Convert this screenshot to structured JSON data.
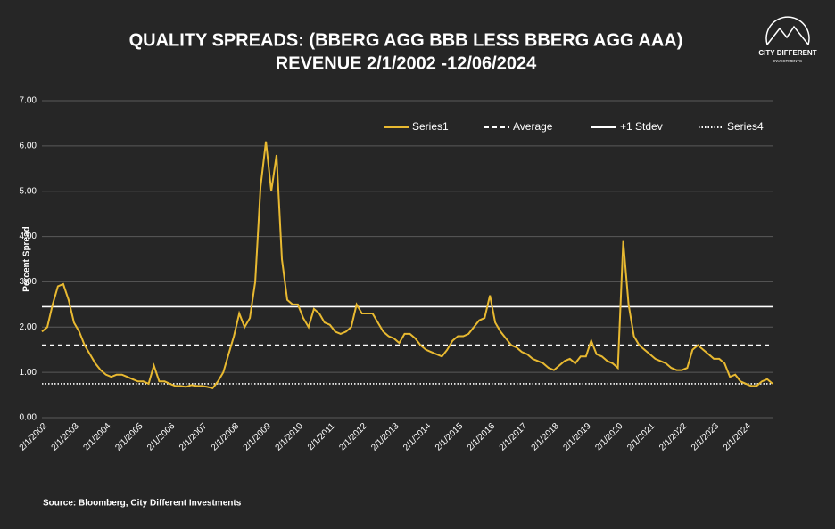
{
  "chart_data": {
    "type": "line",
    "title": "QUALITY SPREADS: (BBERG AGG BBB LESS BBERG AGG AAA)",
    "subtitle": "REVENUE 2/1/2002 -12/06/2024",
    "y_label": "Percent Spread",
    "source": "Source: Bloomberg, City Different Investments",
    "logo": {
      "name": "CITY DIFFERENT",
      "tagline": "INVESTMENTS"
    },
    "grid": true,
    "legend": "top-right",
    "ylim": [
      0,
      7
    ],
    "yticks": [
      {
        "value": 0,
        "label": "0.00"
      },
      {
        "value": 1,
        "label": "1.00"
      },
      {
        "value": 2,
        "label": "2.00"
      },
      {
        "value": 3,
        "label": "3.00"
      },
      {
        "value": 4,
        "label": "4.00"
      },
      {
        "value": 5,
        "label": "5.00"
      },
      {
        "value": 6,
        "label": "6.00"
      },
      {
        "value": 7,
        "label": "7.00"
      }
    ],
    "categories": [
      "2/1/2002",
      null,
      null,
      null,
      null,
      null,
      "2/1/2003",
      null,
      null,
      null,
      null,
      null,
      "2/1/2004",
      null,
      null,
      null,
      null,
      null,
      "2/1/2005",
      null,
      null,
      null,
      null,
      null,
      "2/1/2006",
      null,
      null,
      null,
      null,
      null,
      "2/1/2007",
      null,
      null,
      null,
      null,
      null,
      "2/1/2008",
      null,
      null,
      null,
      null,
      null,
      "2/1/2009",
      null,
      null,
      null,
      null,
      null,
      "2/1/2010",
      null,
      null,
      null,
      null,
      null,
      "2/1/2011",
      null,
      null,
      null,
      null,
      null,
      "2/1/2012",
      null,
      null,
      null,
      null,
      null,
      "2/1/2013",
      null,
      null,
      null,
      null,
      null,
      "2/1/2014",
      null,
      null,
      null,
      null,
      null,
      "2/1/2015",
      null,
      null,
      null,
      null,
      null,
      "2/1/2016",
      null,
      null,
      null,
      null,
      null,
      "2/1/2017",
      null,
      null,
      null,
      null,
      null,
      "2/1/2018",
      null,
      null,
      null,
      null,
      null,
      "2/1/2019",
      null,
      null,
      null,
      null,
      null,
      "2/1/2020",
      null,
      null,
      null,
      null,
      null,
      "2/1/2021",
      null,
      null,
      null,
      null,
      null,
      "2/1/2022",
      null,
      null,
      null,
      null,
      null,
      "2/1/2023",
      null,
      null,
      null,
      null,
      null,
      "2/1/2024",
      null,
      null,
      null,
      null,
      null
    ],
    "series": [
      {
        "name": "Series1",
        "color": "#e8b931",
        "style": "solid",
        "values": [
          1.9,
          2.0,
          2.5,
          2.9,
          2.95,
          2.6,
          2.1,
          1.9,
          1.6,
          1.4,
          1.2,
          1.05,
          0.95,
          0.9,
          0.95,
          0.95,
          0.9,
          0.85,
          0.8,
          0.8,
          0.75,
          1.15,
          0.8,
          0.8,
          0.75,
          0.7,
          0.7,
          0.68,
          0.72,
          0.7,
          0.7,
          0.68,
          0.65,
          0.8,
          1.0,
          1.4,
          1.8,
          2.3,
          2.0,
          2.2,
          3.0,
          5.1,
          6.1,
          5.0,
          5.8,
          3.5,
          2.6,
          2.5,
          2.5,
          2.2,
          2.0,
          2.4,
          2.3,
          2.1,
          2.05,
          1.9,
          1.85,
          1.9,
          2.0,
          2.5,
          2.3,
          2.3,
          2.3,
          2.1,
          1.9,
          1.8,
          1.75,
          1.65,
          1.85,
          1.85,
          1.75,
          1.6,
          1.5,
          1.45,
          1.4,
          1.35,
          1.5,
          1.7,
          1.8,
          1.8,
          1.85,
          2.0,
          2.15,
          2.2,
          2.7,
          2.1,
          1.9,
          1.75,
          1.6,
          1.55,
          1.45,
          1.4,
          1.3,
          1.25,
          1.2,
          1.1,
          1.05,
          1.15,
          1.25,
          1.3,
          1.2,
          1.35,
          1.35,
          1.7,
          1.4,
          1.35,
          1.25,
          1.2,
          1.1,
          3.9,
          2.5,
          1.8,
          1.6,
          1.5,
          1.4,
          1.3,
          1.25,
          1.2,
          1.1,
          1.05,
          1.05,
          1.1,
          1.5,
          1.6,
          1.5,
          1.4,
          1.3,
          1.3,
          1.2,
          0.9,
          0.95,
          0.8,
          0.75,
          0.7,
          0.7,
          0.8,
          0.85,
          0.75
        ]
      },
      {
        "name": "Average",
        "color": "#ffffff",
        "style": "dashed",
        "values": [
          1.6,
          1.6,
          1.6,
          1.6,
          1.6,
          1.6,
          1.6,
          1.6,
          1.6,
          1.6,
          1.6,
          1.6,
          1.6,
          1.6,
          1.6,
          1.6,
          1.6,
          1.6,
          1.6,
          1.6,
          1.6,
          1.6,
          1.6,
          1.6,
          1.6,
          1.6,
          1.6,
          1.6,
          1.6,
          1.6,
          1.6,
          1.6,
          1.6,
          1.6,
          1.6,
          1.6,
          1.6,
          1.6,
          1.6,
          1.6,
          1.6,
          1.6,
          1.6,
          1.6,
          1.6,
          1.6,
          1.6,
          1.6,
          1.6,
          1.6,
          1.6,
          1.6,
          1.6,
          1.6,
          1.6,
          1.6,
          1.6,
          1.6,
          1.6,
          1.6,
          1.6,
          1.6,
          1.6,
          1.6,
          1.6,
          1.6,
          1.6,
          1.6,
          1.6,
          1.6,
          1.6,
          1.6,
          1.6,
          1.6,
          1.6,
          1.6,
          1.6,
          1.6,
          1.6,
          1.6,
          1.6,
          1.6,
          1.6,
          1.6,
          1.6,
          1.6,
          1.6,
          1.6,
          1.6,
          1.6,
          1.6,
          1.6,
          1.6,
          1.6,
          1.6,
          1.6,
          1.6,
          1.6,
          1.6,
          1.6,
          1.6,
          1.6,
          1.6,
          1.6,
          1.6,
          1.6,
          1.6,
          1.6,
          1.6,
          1.6,
          1.6,
          1.6,
          1.6,
          1.6,
          1.6,
          1.6,
          1.6,
          1.6,
          1.6,
          1.6,
          1.6,
          1.6,
          1.6,
          1.6,
          1.6,
          1.6,
          1.6,
          1.6,
          1.6,
          1.6,
          1.6,
          1.6,
          1.6,
          1.6,
          1.6,
          1.6,
          1.6,
          1.6
        ]
      },
      {
        "name": "+1 Stdev",
        "color": "#ffffff",
        "style": "solid",
        "values": [
          2.45,
          2.45,
          2.45,
          2.45,
          2.45,
          2.45,
          2.45,
          2.45,
          2.45,
          2.45,
          2.45,
          2.45,
          2.45,
          2.45,
          2.45,
          2.45,
          2.45,
          2.45,
          2.45,
          2.45,
          2.45,
          2.45,
          2.45,
          2.45,
          2.45,
          2.45,
          2.45,
          2.45,
          2.45,
          2.45,
          2.45,
          2.45,
          2.45,
          2.45,
          2.45,
          2.45,
          2.45,
          2.45,
          2.45,
          2.45,
          2.45,
          2.45,
          2.45,
          2.45,
          2.45,
          2.45,
          2.45,
          2.45,
          2.45,
          2.45,
          2.45,
          2.45,
          2.45,
          2.45,
          2.45,
          2.45,
          2.45,
          2.45,
          2.45,
          2.45,
          2.45,
          2.45,
          2.45,
          2.45,
          2.45,
          2.45,
          2.45,
          2.45,
          2.45,
          2.45,
          2.45,
          2.45,
          2.45,
          2.45,
          2.45,
          2.45,
          2.45,
          2.45,
          2.45,
          2.45,
          2.45,
          2.45,
          2.45,
          2.45,
          2.45,
          2.45,
          2.45,
          2.45,
          2.45,
          2.45,
          2.45,
          2.45,
          2.45,
          2.45,
          2.45,
          2.45,
          2.45,
          2.45,
          2.45,
          2.45,
          2.45,
          2.45,
          2.45,
          2.45,
          2.45,
          2.45,
          2.45,
          2.45,
          2.45,
          2.45,
          2.45,
          2.45,
          2.45,
          2.45,
          2.45,
          2.45,
          2.45,
          2.45,
          2.45,
          2.45,
          2.45,
          2.45,
          2.45,
          2.45,
          2.45,
          2.45,
          2.45,
          2.45,
          2.45,
          2.45,
          2.45,
          2.45,
          2.45,
          2.45,
          2.45,
          2.45,
          2.45,
          2.45
        ]
      },
      {
        "name": "Series4",
        "color": "#ffffff",
        "style": "dotted",
        "values": [
          0.75,
          0.75,
          0.75,
          0.75,
          0.75,
          0.75,
          0.75,
          0.75,
          0.75,
          0.75,
          0.75,
          0.75,
          0.75,
          0.75,
          0.75,
          0.75,
          0.75,
          0.75,
          0.75,
          0.75,
          0.75,
          0.75,
          0.75,
          0.75,
          0.75,
          0.75,
          0.75,
          0.75,
          0.75,
          0.75,
          0.75,
          0.75,
          0.75,
          0.75,
          0.75,
          0.75,
          0.75,
          0.75,
          0.75,
          0.75,
          0.75,
          0.75,
          0.75,
          0.75,
          0.75,
          0.75,
          0.75,
          0.75,
          0.75,
          0.75,
          0.75,
          0.75,
          0.75,
          0.75,
          0.75,
          0.75,
          0.75,
          0.75,
          0.75,
          0.75,
          0.75,
          0.75,
          0.75,
          0.75,
          0.75,
          0.75,
          0.75,
          0.75,
          0.75,
          0.75,
          0.75,
          0.75,
          0.75,
          0.75,
          0.75,
          0.75,
          0.75,
          0.75,
          0.75,
          0.75,
          0.75,
          0.75,
          0.75,
          0.75,
          0.75,
          0.75,
          0.75,
          0.75,
          0.75,
          0.75,
          0.75,
          0.75,
          0.75,
          0.75,
          0.75,
          0.75,
          0.75,
          0.75,
          0.75,
          0.75,
          0.75,
          0.75,
          0.75,
          0.75,
          0.75,
          0.75,
          0.75,
          0.75,
          0.75,
          0.75,
          0.75,
          0.75,
          0.75,
          0.75,
          0.75,
          0.75,
          0.75,
          0.75,
          0.75,
          0.75,
          0.75,
          0.75,
          0.75,
          0.75,
          0.75,
          0.75,
          0.75,
          0.75,
          0.75,
          0.75,
          0.75,
          0.75,
          0.75,
          0.75,
          0.75,
          0.75,
          0.75,
          0.75
        ]
      }
    ]
  }
}
